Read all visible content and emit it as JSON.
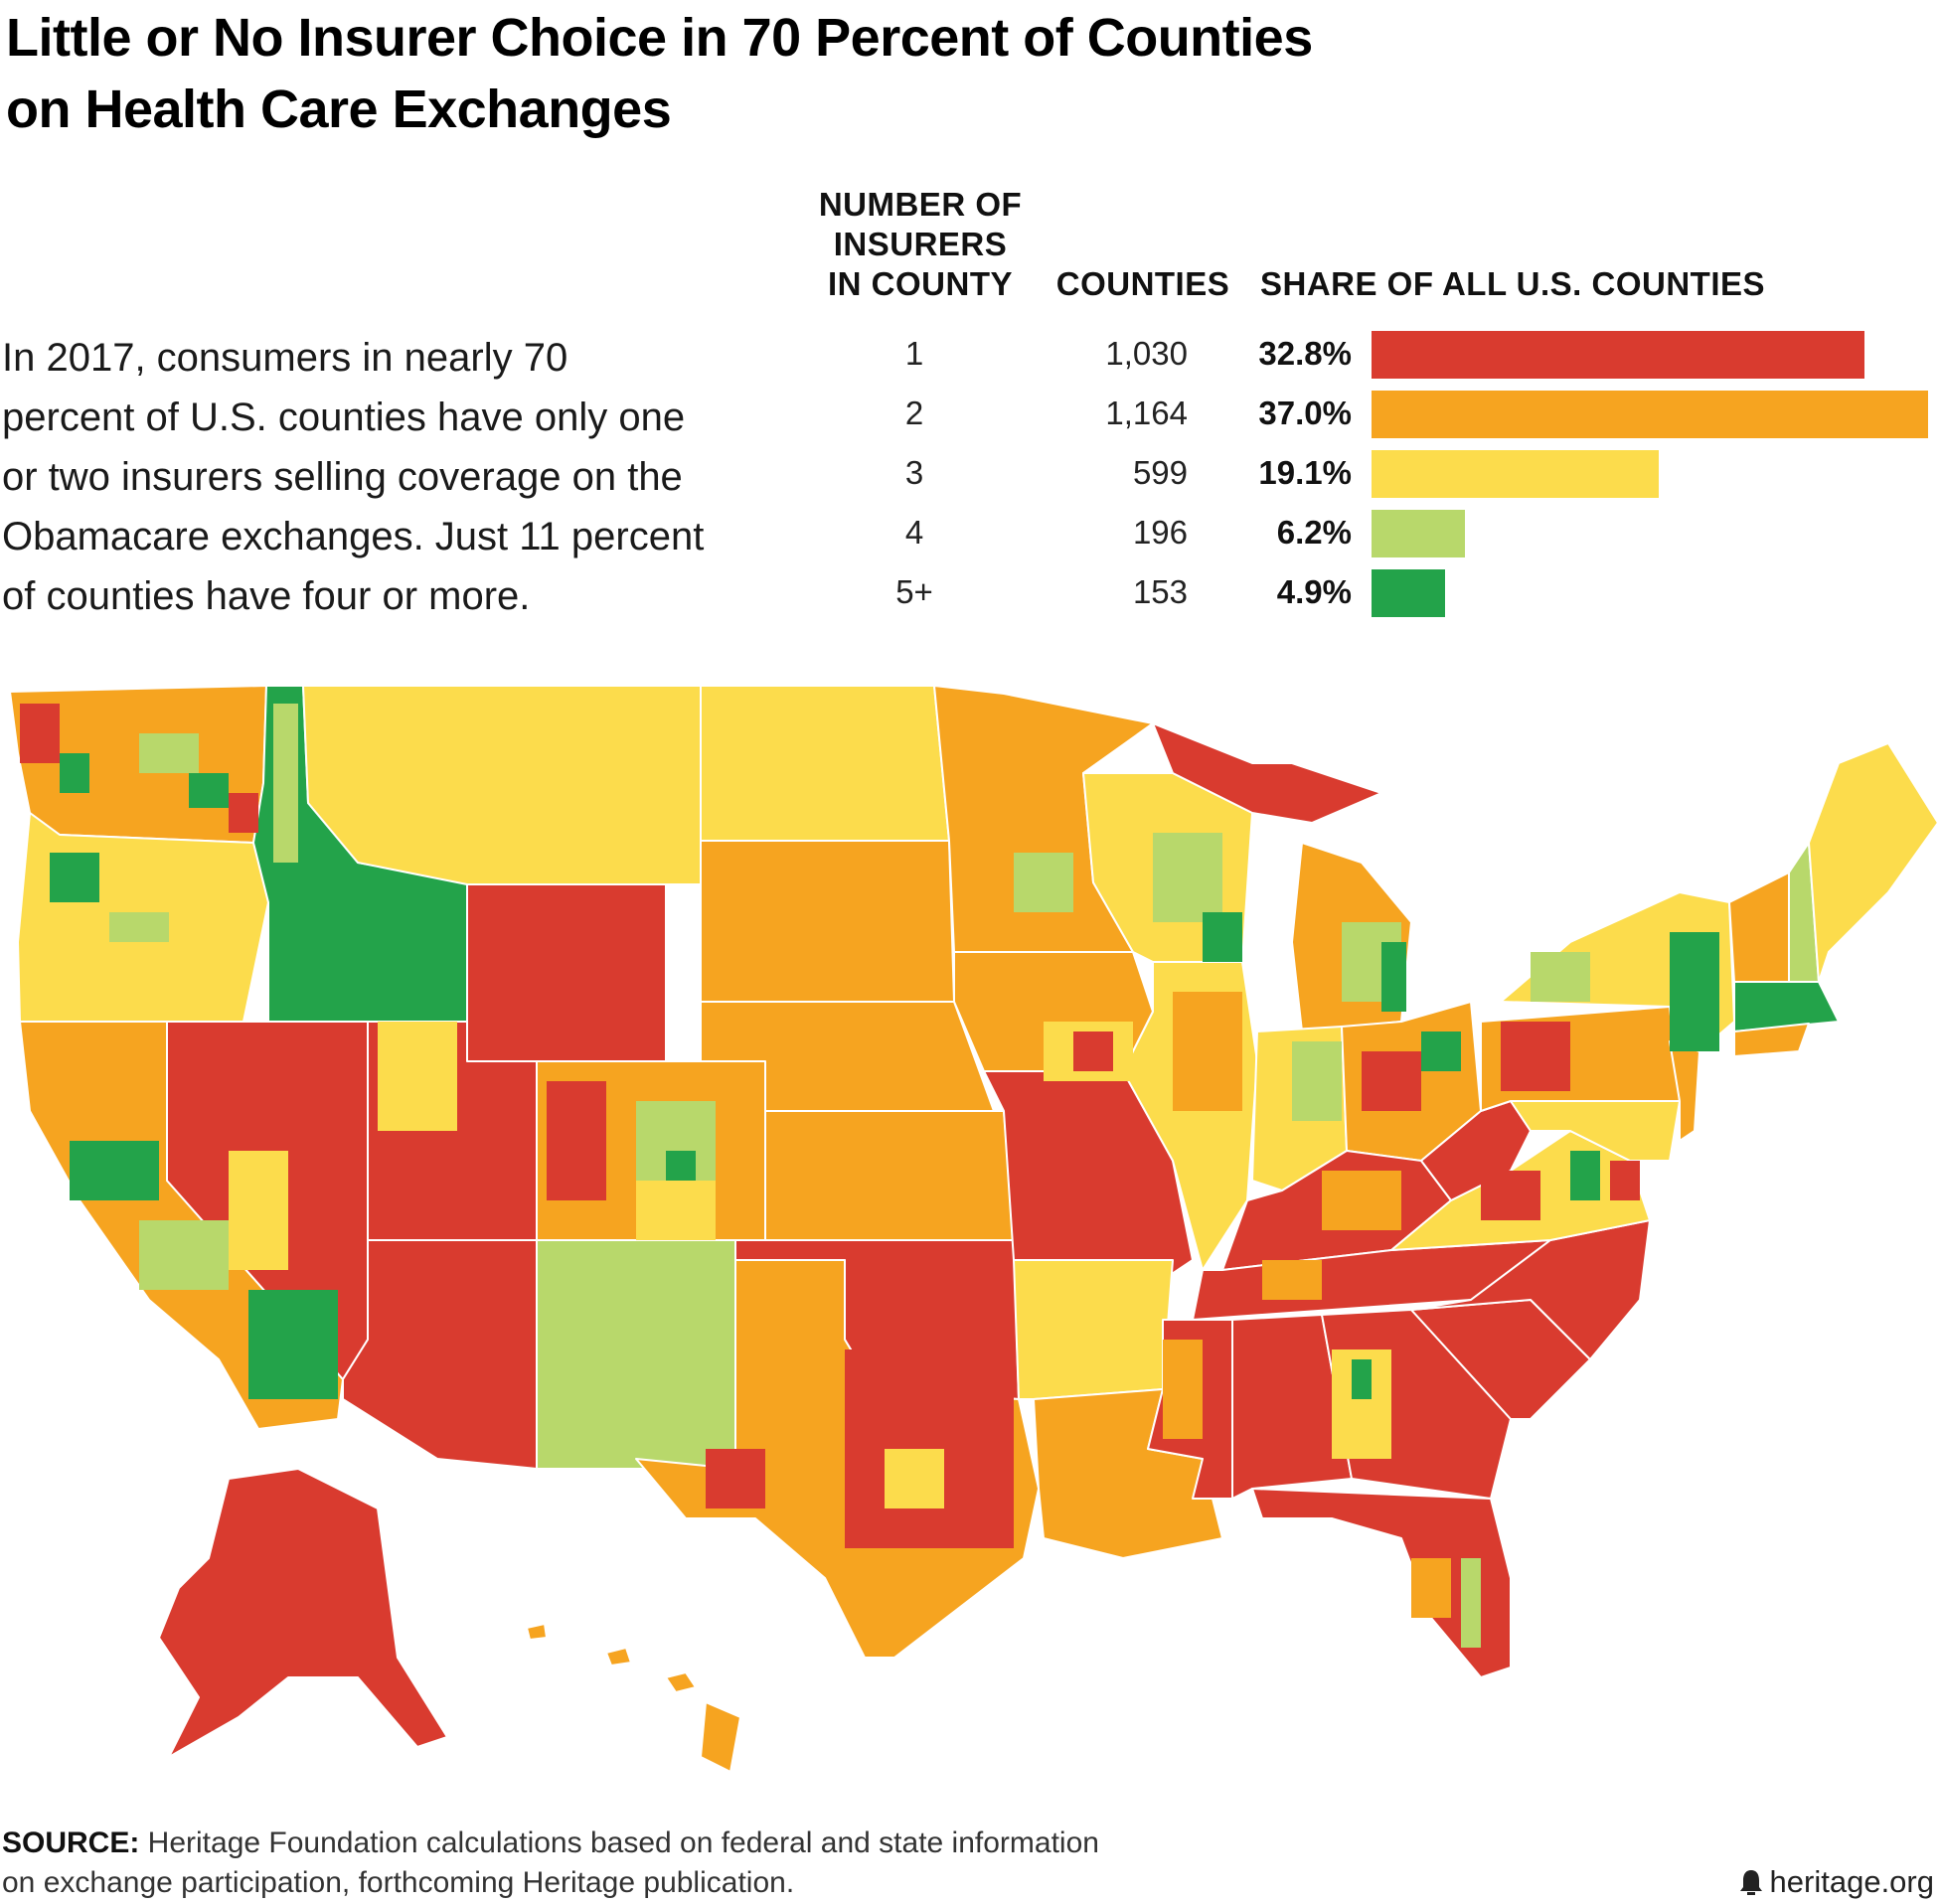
{
  "title_lines": [
    "Little or No Insurer Choice in 70 Percent of Counties",
    "on Health Care Exchanges"
  ],
  "intro_lines": [
    "In 2017, consumers in nearly 70",
    "percent of U.S. counties have only one",
    "or two insurers selling coverage on the",
    "Obamacare exchanges. Just 11 percent",
    "of counties have four or more."
  ],
  "source": {
    "label": "SOURCE:",
    "line1": " Heritage Foundation calculations based on federal and state information",
    "line2": "on exchange participation, forthcoming Heritage publication."
  },
  "logo_text": "heritage.org",
  "colors": {
    "c1": "#d93b2f",
    "c2": "#f6a420",
    "c3": "#fcdc4c",
    "c4": "#b8d86b",
    "c5": "#23a34a"
  },
  "chart_data": {
    "type": "table",
    "title": "Little or No Insurer Choice in 70 Percent of Counties on Health Care Exchanges",
    "columns": {
      "category_lines": [
        "NUMBER OF",
        "INSURERS",
        "IN COUNTY"
      ],
      "counties": "COUNTIES",
      "share": "SHARE OF ALL U.S. COUNTIES"
    },
    "rows": [
      {
        "category": "1",
        "counties": "1,030",
        "share_label": "32.8%",
        "share": 32.8,
        "color": "#d93b2f"
      },
      {
        "category": "2",
        "counties": "1,164",
        "share_label": "37.0%",
        "share": 37.0,
        "color": "#f6a420"
      },
      {
        "category": "3",
        "counties": "599",
        "share_label": "19.1%",
        "share": 19.1,
        "color": "#fcdc4c"
      },
      {
        "category": "4",
        "counties": "196",
        "share_label": "6.2%",
        "share": 6.2,
        "color": "#b8d86b"
      },
      {
        "category": "5+",
        "counties": "153",
        "share_label": "4.9%",
        "share": 4.9,
        "color": "#23a34a"
      }
    ],
    "share_max": 37.0,
    "map": "Choropleth map of U.S. counties colored by number of exchange insurers (legend as rows above)"
  }
}
